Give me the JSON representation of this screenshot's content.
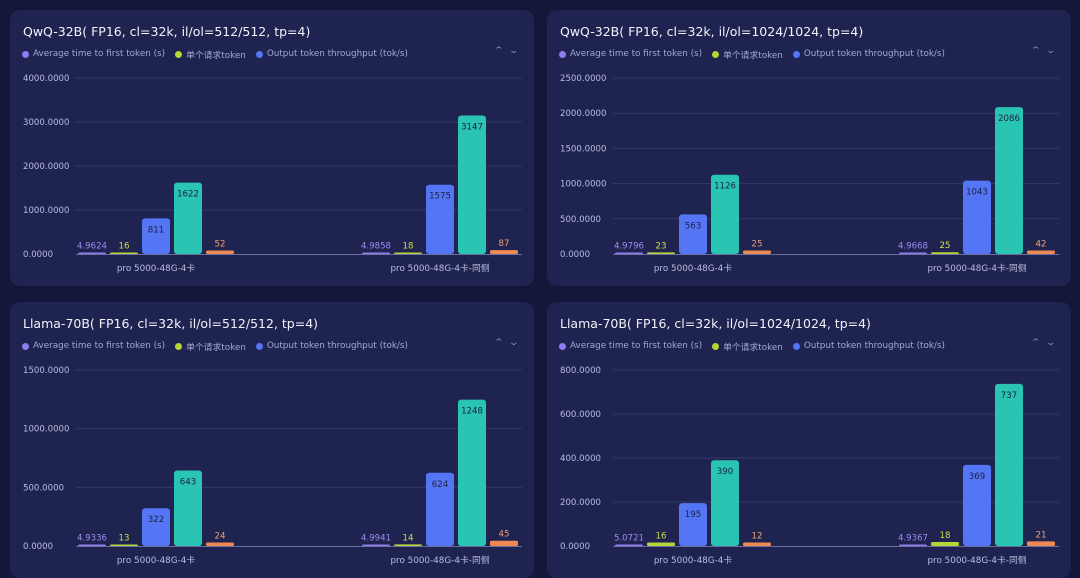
{
  "legend": {
    "ttft": "Average time to first token (s)",
    "single": "单个请求token",
    "throughput": "Output token throughput (tok/s)"
  },
  "colors": {
    "ttft": "#8f7cf2",
    "single": "#b5d636",
    "throughput": "#5576f4",
    "throughput_total": "#2ac4b3",
    "extra": "#f08a52",
    "grid": "#343968",
    "tick": "#b9bddc",
    "baseline": "#6a6fa0"
  },
  "chart_data": [
    {
      "type": "bar",
      "title": "QwQ-32B( FP16, cl=32k, il/ol=512/512, tp=4)",
      "categories": [
        "pro 5000-48G-4卡",
        "pro 5000-48G-4卡-同侧"
      ],
      "yticks": [
        "0.0000",
        "1000.0000",
        "2000.0000",
        "3000.0000",
        "4000.0000"
      ],
      "ylim": [
        0,
        4000
      ],
      "groups": [
        {
          "ttft": "4.9624",
          "single": 16,
          "throughput": 811,
          "total": 1622,
          "extra": 52
        },
        {
          "ttft": "4.9858",
          "single": 18,
          "throughput": 1575,
          "total": 3147,
          "extra": 87
        }
      ]
    },
    {
      "type": "bar",
      "title": "QwQ-32B( FP16, cl=32k, il/ol=1024/1024, tp=4)",
      "categories": [
        "pro 5000-48G-4卡",
        "pro 5000-48G-4卡-同侧"
      ],
      "yticks": [
        "0.0000",
        "500.0000",
        "1000.0000",
        "1500.0000",
        "2000.0000",
        "2500.0000"
      ],
      "ylim": [
        0,
        2500
      ],
      "groups": [
        {
          "ttft": "4.9796",
          "single": 23,
          "throughput": 563,
          "total": 1126,
          "extra": 25
        },
        {
          "ttft": "4.9668",
          "single": 25,
          "throughput": 1043,
          "total": 2086,
          "extra": 42
        }
      ]
    },
    {
      "type": "bar",
      "title": "Llama-70B( FP16, cl=32k, il/ol=512/512, tp=4)",
      "categories": [
        "pro 5000-48G-4卡",
        "pro 5000-48G-4卡-同侧"
      ],
      "yticks": [
        "0.0000",
        "500.0000",
        "1000.0000",
        "1500.0000"
      ],
      "ylim": [
        0,
        1500
      ],
      "groups": [
        {
          "ttft": "4.9336",
          "single": 13,
          "throughput": 322,
          "total": 643,
          "extra": 24
        },
        {
          "ttft": "4.9941",
          "single": 14,
          "throughput": 624,
          "total": 1248,
          "extra": 45
        }
      ]
    },
    {
      "type": "bar",
      "title": "Llama-70B( FP16, cl=32k, il/ol=1024/1024, tp=4)",
      "categories": [
        "pro 5000-48G-4卡",
        "pro 5000-48G-4卡-同侧"
      ],
      "yticks": [
        "0.0000",
        "200.0000",
        "400.0000",
        "600.0000",
        "800.0000"
      ],
      "ylim": [
        0,
        800
      ],
      "groups": [
        {
          "ttft": "5.0721",
          "single": 16,
          "throughput": 195,
          "total": 390,
          "extra": 12
        },
        {
          "ttft": "4.9367",
          "single": 18,
          "throughput": 369,
          "total": 737,
          "extra": 21
        }
      ]
    }
  ]
}
